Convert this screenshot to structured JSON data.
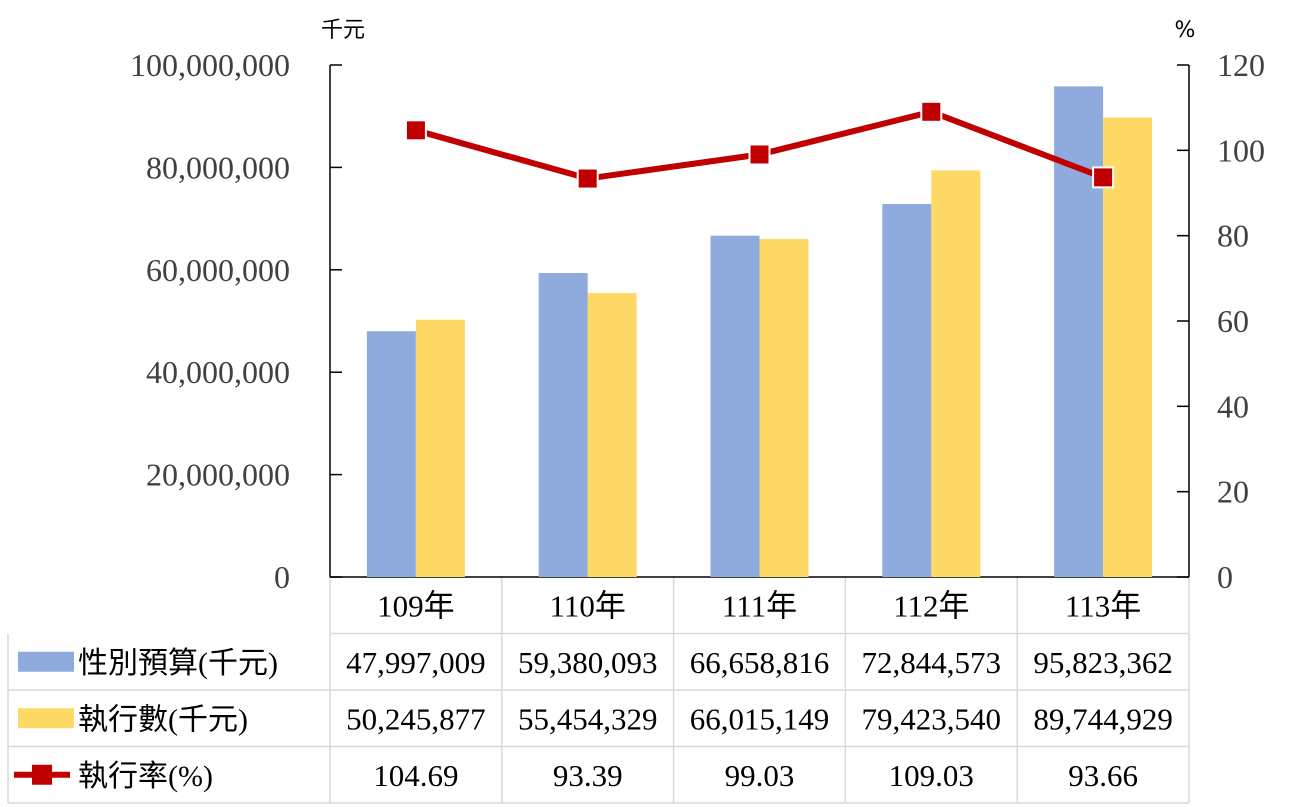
{
  "chart_data": {
    "type": "bar",
    "categories": [
      "109年",
      "110年",
      "111年",
      "112年",
      "113年"
    ],
    "left_unit": "千元",
    "right_unit": "%",
    "ylim": [
      0,
      100000000
    ],
    "y_ticks": [
      "0",
      "20,000,000",
      "40,000,000",
      "60,000,000",
      "80,000,000",
      "100,000,000"
    ],
    "y_tick_values": [
      0,
      20000000,
      40000000,
      60000000,
      80000000,
      100000000
    ],
    "y2lim": [
      0,
      120
    ],
    "y2_ticks": [
      "0",
      "20",
      "40",
      "60",
      "80",
      "100",
      "120"
    ],
    "y2_tick_values": [
      0,
      20,
      40,
      60,
      80,
      100,
      120
    ],
    "series": [
      {
        "name": "性別預算(千元)",
        "kind": "bar",
        "color": "#8faadc",
        "values": [
          47997009,
          59380093,
          66658816,
          72844573,
          95823362
        ],
        "labels": [
          "47,997,009",
          "59,380,093",
          "66,658,816",
          "72,844,573",
          "95,823,362"
        ]
      },
      {
        "name": "執行數(千元)",
        "kind": "bar",
        "color": "#ffd966",
        "values": [
          50245877,
          55454329,
          66015149,
          79423540,
          89744929
        ],
        "labels": [
          "50,245,877",
          "55,454,329",
          "66,015,149",
          "79,423,540",
          "89,744,929"
        ]
      },
      {
        "name": "執行率(%)",
        "kind": "line",
        "axis": "right",
        "color": "#c00000",
        "values": [
          104.69,
          93.39,
          99.03,
          109.03,
          93.66
        ],
        "labels": [
          "104.69",
          "93.39",
          "99.03",
          "109.03",
          "93.66"
        ]
      }
    ]
  }
}
